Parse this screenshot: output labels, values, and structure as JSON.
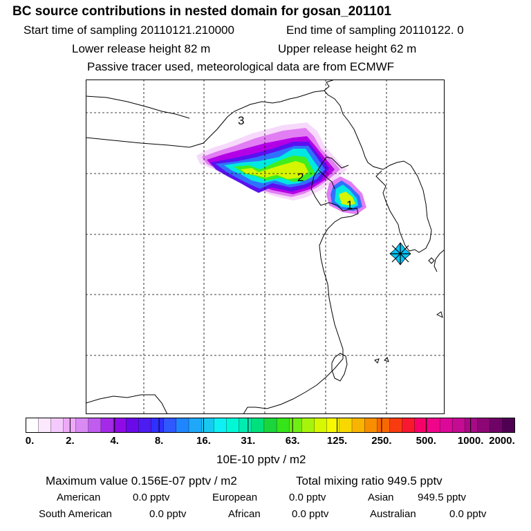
{
  "header": {
    "title": "BC  source contributions in nested domain for gosan_201101",
    "start_sampling": "Start time of sampling 20110121.210000",
    "end_sampling": "End time of sampling 20110122.     0",
    "lower_release": "Lower release height   82 m",
    "upper_release": "Upper release height   62 m",
    "tracer_note": "Passive tracer used, meteorological data are from ECMWF"
  },
  "map": {
    "labels": [
      "1",
      "2",
      "3"
    ],
    "colors": {
      "background": "#ffffff",
      "coast": "#000000",
      "grid": "#000000",
      "receptor": "#00c8ff"
    },
    "plume_colors": [
      "#f6d9fb",
      "#e27ef3",
      "#b400e6",
      "#5a10f0",
      "#3070ff",
      "#0aa0f0",
      "#00e8e0",
      "#00e090",
      "#40ee20",
      "#d6f500"
    ]
  },
  "colorbar": {
    "colors": [
      "#ffffff",
      "#fbe8fd",
      "#f4c9fb",
      "#eeaaf8",
      "#d98af3",
      "#c05cee",
      "#a42ae8",
      "#8f0ae6",
      "#6a0ae8",
      "#4d1cf0",
      "#3030ff",
      "#2f58ff",
      "#1f86ff",
      "#1ea8f7",
      "#18c8f0",
      "#0ef0f4",
      "#00f8d4",
      "#00ecb0",
      "#00e07c",
      "#1ad63c",
      "#36e41a",
      "#70ee14",
      "#a6f40c",
      "#d6f800",
      "#f8f800",
      "#f8d800",
      "#f8b400",
      "#f88e00",
      "#f86800",
      "#f83c10",
      "#f81830",
      "#f8006a",
      "#f0048a",
      "#dc0898",
      "#c40c92",
      "#a80a86",
      "#8c0676",
      "#700466",
      "#500052"
    ],
    "ticks": [
      "0.",
      "2.",
      "4.",
      "8.",
      "16.",
      "31.",
      "63.",
      "125.",
      "250.",
      "500.",
      "1000.",
      "2000."
    ],
    "unit_label": "10E-10 pptv / m2"
  },
  "summary": {
    "max_value": "Maximum value  0.156E-07 pptv / m2",
    "total_mixing": "Total mixing ratio      949.5 pptv",
    "regions": [
      {
        "name": "American",
        "value": "0.0 pptv"
      },
      {
        "name": "European",
        "value": "0.0 pptv"
      },
      {
        "name": "Asian",
        "value": "949.5 pptv"
      },
      {
        "name": "South American",
        "value": "0.0 pptv"
      },
      {
        "name": "African",
        "value": "0.0 pptv"
      },
      {
        "name": "Australian",
        "value": "0.0 pptv"
      }
    ]
  }
}
